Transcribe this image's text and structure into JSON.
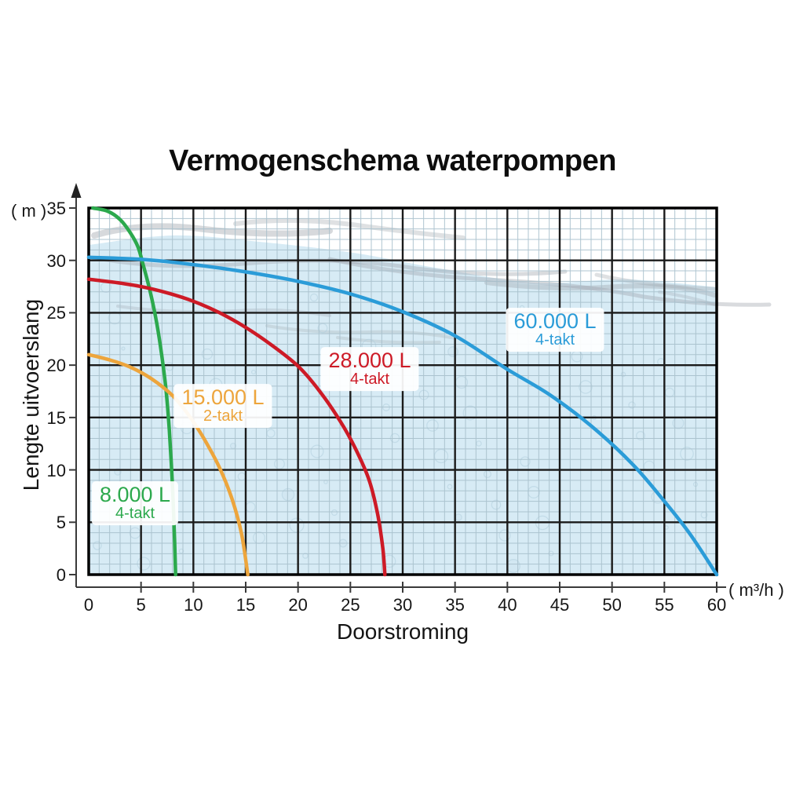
{
  "title": "Vermogenschema waterpompen",
  "axes": {
    "x": {
      "label": "Doorstroming",
      "unit": "( m³/h )",
      "min": 0,
      "max": 60,
      "tick_step": 5,
      "ticks": [
        "0",
        "5",
        "10",
        "15",
        "20",
        "25",
        "30",
        "35",
        "40",
        "45",
        "50",
        "55",
        "60"
      ]
    },
    "y": {
      "label": "Lengte uitvoerslang",
      "unit": "( m )",
      "min": 0,
      "max": 35,
      "tick_step": 5,
      "ticks": [
        "0",
        "5",
        "10",
        "15",
        "20",
        "25",
        "30",
        "35"
      ]
    }
  },
  "colors": {
    "grid_minor": "#a7bfcb",
    "grid_major": "#1b1b1b",
    "plot_border": "#000000",
    "axis_line": "#3a3a3a",
    "water_fill": "#d7ebf5",
    "wave_streak": "#9aa1a8",
    "bubble": "#b3d0df"
  },
  "chart_data": {
    "type": "line",
    "title": "Vermogenschema waterpompen",
    "xlabel": "Doorstroming",
    "x_unit": "m³/h",
    "ylabel": "Lengte uitvoerslang",
    "y_unit": "m",
    "xlim": [
      0,
      60
    ],
    "ylim": [
      0,
      35
    ],
    "grid": {
      "minor_step": 1,
      "major_step": 5,
      "on": true
    },
    "legend_position": "labels-on-curves",
    "series": [
      {
        "name": "8.000 L",
        "engine": "4-takt",
        "color": "#2ca94d",
        "points": [
          [
            0.4,
            35
          ],
          [
            1.8,
            34.7
          ],
          [
            3,
            33.9
          ],
          [
            4,
            32.6
          ],
          [
            4.7,
            31.3
          ],
          [
            5.2,
            29.6
          ],
          [
            5.9,
            26.9
          ],
          [
            6.5,
            24
          ],
          [
            7,
            20.8
          ],
          [
            7.4,
            17.5
          ],
          [
            7.7,
            13.8
          ],
          [
            8,
            8.5
          ],
          [
            8.2,
            3.5
          ],
          [
            8.3,
            0
          ]
        ]
      },
      {
        "name": "15.000 L",
        "engine": "2-takt",
        "color": "#eda53c",
        "points": [
          [
            0,
            21
          ],
          [
            2,
            20.5
          ],
          [
            4,
            19.8
          ],
          [
            6,
            18.7
          ],
          [
            8,
            17.1
          ],
          [
            9.5,
            15.3
          ],
          [
            11,
            13
          ],
          [
            12.5,
            10.2
          ],
          [
            13.7,
            7.2
          ],
          [
            14.6,
            3.9
          ],
          [
            15.2,
            0
          ]
        ]
      },
      {
        "name": "28.000 L",
        "engine": "4-takt",
        "color": "#cd1a26",
        "points": [
          [
            0,
            28.2
          ],
          [
            2.5,
            27.9
          ],
          [
            5,
            27.5
          ],
          [
            7.5,
            26.9
          ],
          [
            10,
            26.1
          ],
          [
            12.5,
            25
          ],
          [
            15,
            23.6
          ],
          [
            17.5,
            21.9
          ],
          [
            20,
            19.9
          ],
          [
            22,
            17.6
          ],
          [
            24,
            14.7
          ],
          [
            25.5,
            12
          ],
          [
            26.8,
            9
          ],
          [
            27.6,
            5.8
          ],
          [
            28.1,
            2.5
          ],
          [
            28.3,
            0
          ]
        ]
      },
      {
        "name": "60.000 L",
        "engine": "4-takt",
        "color": "#2b9cd8",
        "points": [
          [
            0,
            30.3
          ],
          [
            5,
            30.1
          ],
          [
            10,
            29.6
          ],
          [
            15,
            28.9
          ],
          [
            20,
            28
          ],
          [
            25,
            26.8
          ],
          [
            30,
            25.1
          ],
          [
            35,
            22.8
          ],
          [
            40,
            19.6
          ],
          [
            44,
            17.2
          ],
          [
            48,
            14.2
          ],
          [
            52,
            10.5
          ],
          [
            55,
            7
          ],
          [
            57.5,
            3.8
          ],
          [
            60,
            0
          ]
        ]
      }
    ]
  }
}
